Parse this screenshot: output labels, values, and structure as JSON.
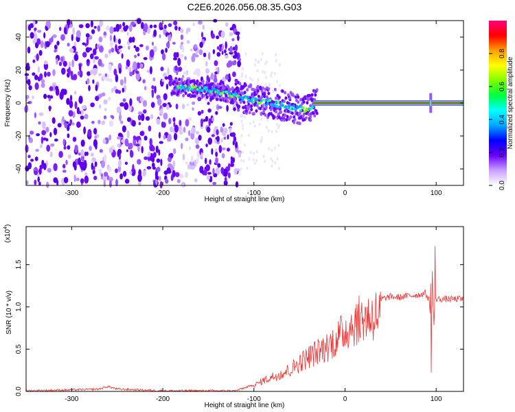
{
  "title": "C2E6.2026.056.08.35.G03",
  "chart_data": [
    {
      "type": "heatmap",
      "xlabel": "Height of straight line (km)",
      "ylabel": "Frequency (Hz)",
      "xlim": [
        -350,
        130
      ],
      "ylim": [
        -50,
        50
      ],
      "xticks": [
        -300,
        -200,
        -100,
        0,
        100
      ],
      "yticks": [
        -40,
        -20,
        0,
        20,
        40
      ],
      "colorbar": {
        "label": "Normalized spectral amplitude",
        "range": [
          0,
          1
        ],
        "ticks": [
          "0.0",
          "0.2",
          "0.4",
          "0.6",
          "0.8"
        ],
        "colors": [
          "#ffffff",
          "#c8a0ff",
          "#6a00ff",
          "#0000ff",
          "#00a8ff",
          "#00ffff",
          "#00ff40",
          "#80ff00",
          "#ffff00",
          "#ffa000",
          "#ff0000",
          "#ff0080"
        ]
      },
      "features": {
        "noise_region_x": [
          -350,
          -115
        ],
        "diffuse_noise_x": [
          -115,
          -90
        ],
        "track": {
          "x": [
            -190,
            -170,
            -150,
            -130,
            -110,
            -95,
            -80,
            -65,
            -55,
            -45,
            -38,
            -32,
            -25,
            -15,
            0,
            50,
            130
          ],
          "y": [
            10,
            9,
            8,
            6,
            3,
            1,
            0,
            -2,
            -3,
            -4,
            -3,
            0,
            0,
            1,
            0,
            0,
            0
          ]
        },
        "tone_x": [
          -35,
          130
        ],
        "tone_freq": 0,
        "spike_x": 94
      }
    },
    {
      "type": "line",
      "ylabel": "SNR (10 * v/v)",
      "yscale_label": "(x10",
      "yscale_exp": "4",
      "xlabel": "Height of straight line (km)",
      "xlim": [
        -350,
        130
      ],
      "ylim": [
        0,
        1.95
      ],
      "xticks": [
        -300,
        -200,
        -100,
        0,
        100
      ],
      "yticks": [
        "0.0",
        "0.5",
        "1.0",
        "1.5"
      ],
      "series": [
        {
          "color": "#ee3333",
          "x": [
            -350,
            -300,
            -270,
            -260,
            -250,
            -200,
            -120,
            -100,
            -90,
            -80,
            -70,
            -60,
            -50,
            -40,
            -30,
            -20,
            -10,
            0,
            10,
            20,
            30,
            40,
            50,
            60,
            70,
            80,
            88,
            92,
            96,
            98,
            100,
            104,
            110,
            130
          ],
          "y": [
            0.01,
            0.02,
            0.03,
            0.06,
            0.03,
            0.01,
            0.01,
            0.08,
            0.15,
            0.2,
            0.25,
            0.3,
            0.4,
            0.48,
            0.55,
            0.62,
            0.72,
            0.85,
            0.95,
            1.02,
            1.05,
            1.1,
            1.13,
            1.12,
            1.14,
            1.15,
            1.17,
            1.1,
            0.9,
            1.2,
            1.1,
            1.1,
            1.1,
            1.1
          ]
        }
      ]
    }
  ]
}
